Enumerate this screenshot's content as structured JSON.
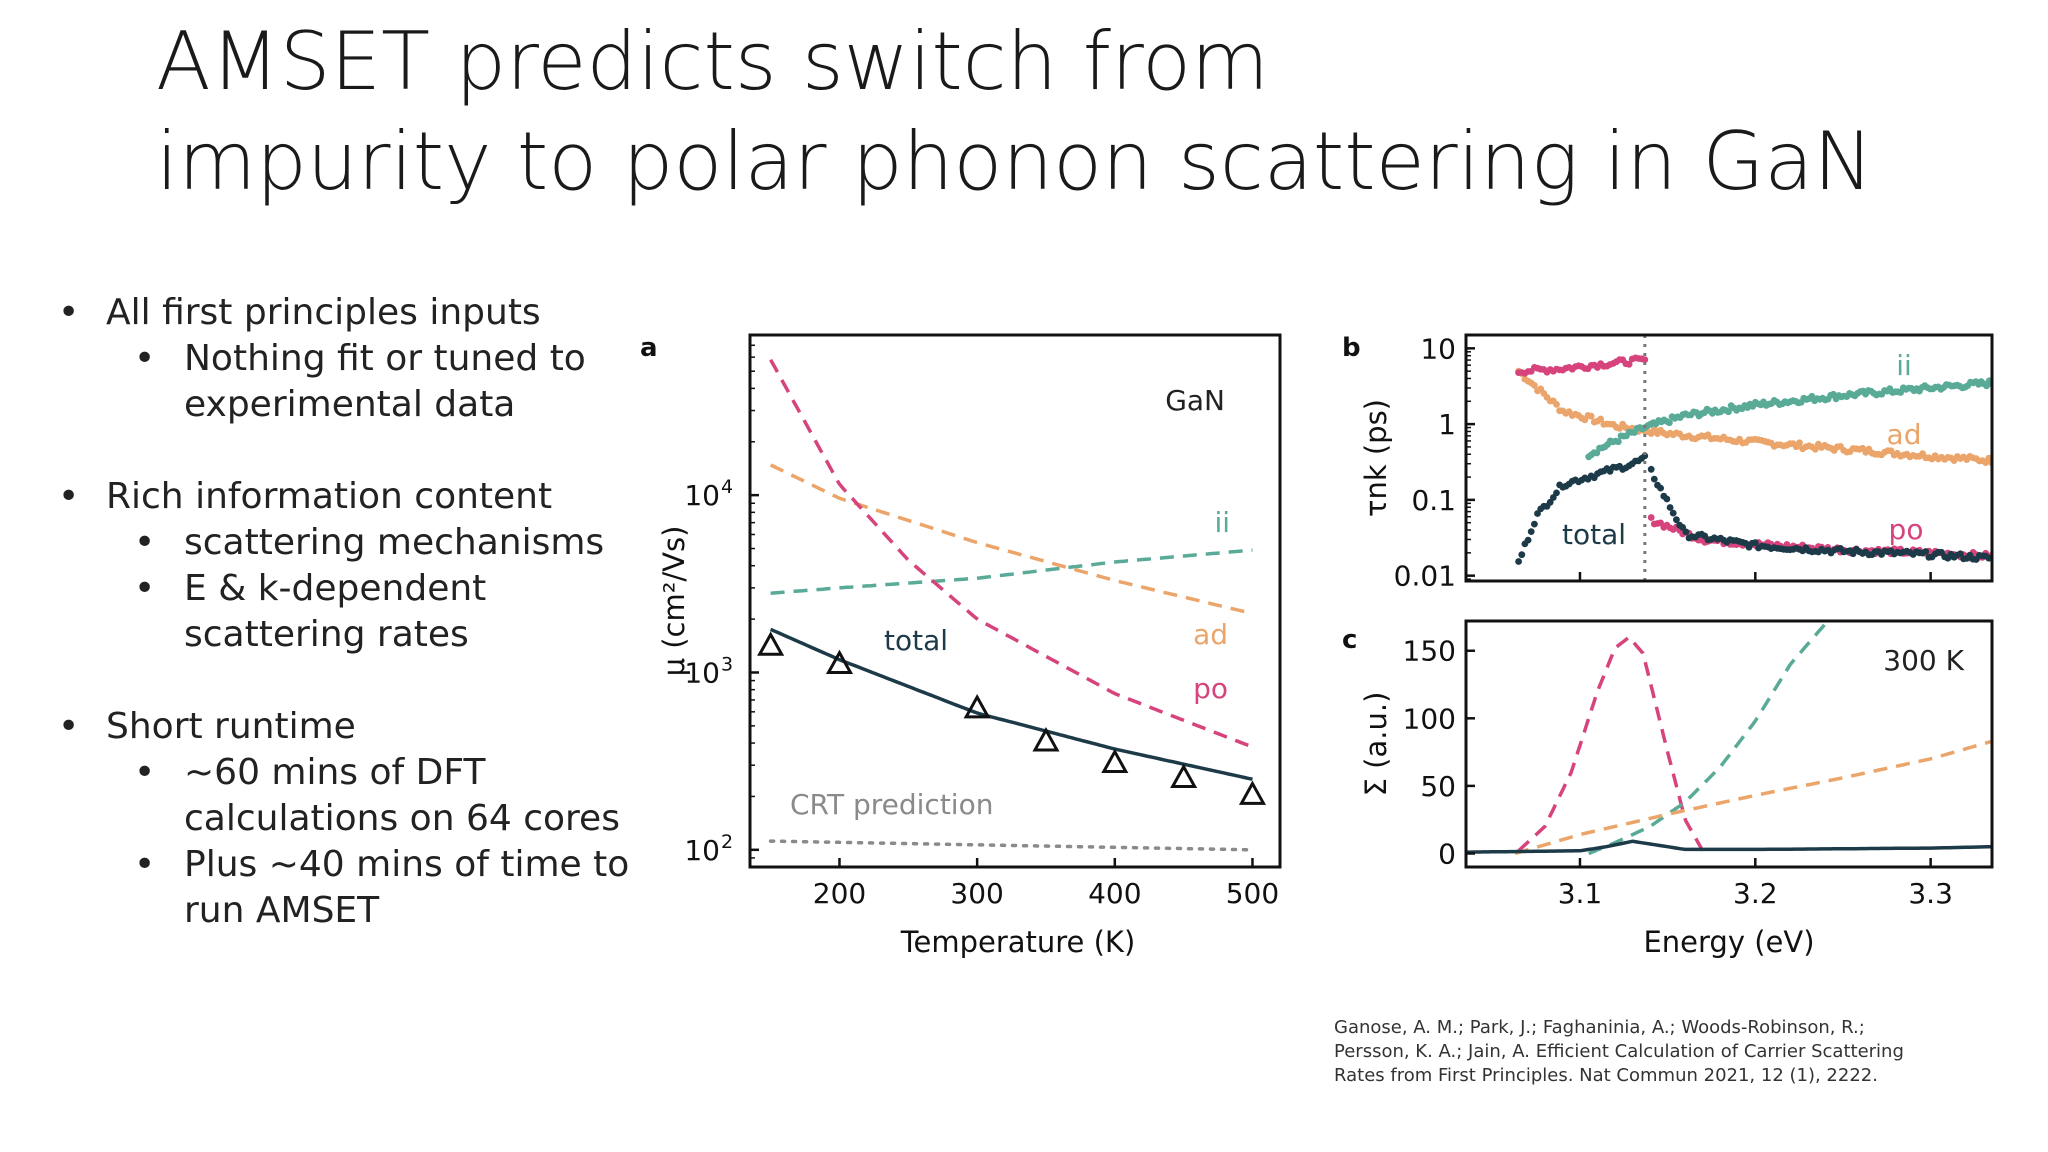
{
  "slide": {
    "title_line1": "AMSET predicts switch from",
    "title_line2": "impurity to polar phonon scattering in GaN",
    "bullets": [
      {
        "text": "All first principles inputs",
        "sub": [
          "Nothing fit or tuned to experimental data"
        ]
      },
      {
        "text": "Rich information content",
        "sub": [
          "scattering mechanisms",
          "E & k-dependent scattering rates"
        ]
      },
      {
        "text": "Short runtime",
        "sub": [
          "~60 mins of DFT calculations on 64 cores",
          "Plus ~40 mins of time to run AMSET"
        ]
      }
    ],
    "citation": "Ganose, A. M.; Park, J.; Faghaninia, A.; Woods-Robinson, R.; Persson, K. A.; Jain, A. Efficient Calculation of Carrier Scattering Rates from First Principles. Nat Commun 2021, 12 (1), 2222."
  },
  "colors": {
    "ii": "#5aaa98",
    "ad": "#eba56a",
    "po": "#d6437d",
    "total": "#1d3a48",
    "crt": "#8a8a8a"
  },
  "chart_data": [
    {
      "panel": "a",
      "type": "line",
      "annotation": "GaN",
      "xlabel": "Temperature (K)",
      "ylabel": "μ (cm²/Vs)",
      "yscale": "log",
      "xlim": [
        135,
        520
      ],
      "ylim": [
        80,
        80000
      ],
      "xticks": [
        200,
        300,
        400,
        500
      ],
      "yticks": [
        {
          "value": 100,
          "label": "10",
          "exp": "2"
        },
        {
          "value": 1000,
          "label": "10",
          "exp": "3"
        },
        {
          "value": 10000,
          "label": "10",
          "exp": "4"
        }
      ],
      "series": [
        {
          "name": "ii",
          "style": "dashed",
          "x": [
            150,
            200,
            300,
            400,
            500
          ],
          "y": [
            2800,
            3000,
            3400,
            4200,
            4900
          ]
        },
        {
          "name": "ad",
          "style": "dashed",
          "x": [
            150,
            200,
            300,
            400,
            500
          ],
          "y": [
            14800,
            9600,
            5400,
            3300,
            2150
          ]
        },
        {
          "name": "po",
          "style": "dashed",
          "x": [
            150,
            200,
            250,
            300,
            400,
            500
          ],
          "y": [
            58000,
            11500,
            4300,
            2000,
            760,
            380
          ]
        },
        {
          "name": "total",
          "style": "solid",
          "x": [
            150,
            200,
            300,
            400,
            500
          ],
          "y": [
            1750,
            1180,
            590,
            370,
            250
          ]
        },
        {
          "name": "CRT prediction",
          "style": "dotted",
          "x": [
            150,
            500
          ],
          "y": [
            112,
            100
          ]
        }
      ],
      "experiment": {
        "marker": "triangle",
        "x": [
          150,
          200,
          300,
          350,
          400,
          450,
          500
        ],
        "y": [
          1420,
          1120,
          630,
          410,
          310,
          255,
          205
        ]
      }
    },
    {
      "panel": "b",
      "type": "scatter",
      "ylabel": "τnk (ps)",
      "yscale": "log",
      "xlim": [
        3.035,
        3.335
      ],
      "ylim": [
        0.0085,
        15
      ],
      "yticks": [
        {
          "value": 10,
          "label": "10"
        },
        {
          "value": 1,
          "label": "1"
        },
        {
          "value": 0.1,
          "label": "0.1"
        },
        {
          "value": 0.01,
          "label": "0.01"
        }
      ],
      "vline_energy": 3.137,
      "series": [
        {
          "name": "ii",
          "x": [
            3.105,
            3.12,
            3.137,
            3.16,
            3.2,
            3.25,
            3.3,
            3.335
          ],
          "y": [
            0.4,
            0.6,
            0.9,
            1.3,
            1.8,
            2.4,
            3.0,
            3.5
          ]
        },
        {
          "name": "ad",
          "x": [
            3.065,
            3.09,
            3.12,
            3.15,
            3.2,
            3.25,
            3.3,
            3.335
          ],
          "y": [
            5,
            1.5,
            0.95,
            0.75,
            0.58,
            0.47,
            0.38,
            0.33
          ]
        },
        {
          "name": "po",
          "x": [
            3.065,
            3.09,
            3.11,
            3.13,
            3.137,
            3.14,
            3.17,
            3.2,
            3.25,
            3.3,
            3.335
          ],
          "y": [
            5,
            5.4,
            6.1,
            6.8,
            7,
            0.055,
            0.03,
            0.026,
            0.022,
            0.02,
            0.018
          ]
        },
        {
          "name": "total",
          "x": [
            3.065,
            3.075,
            3.09,
            3.11,
            3.13,
            3.137,
            3.14,
            3.16,
            3.2,
            3.25,
            3.3,
            3.335
          ],
          "y": [
            0.015,
            0.06,
            0.16,
            0.22,
            0.3,
            0.35,
            0.25,
            0.035,
            0.025,
            0.021,
            0.019,
            0.017
          ]
        }
      ]
    },
    {
      "panel": "c",
      "type": "line",
      "annotation": "300 K",
      "xlabel": "Energy (eV)",
      "ylabel": "Σ (a.u.)",
      "xlim": [
        3.035,
        3.335
      ],
      "ylim": [
        -10,
        172
      ],
      "xticks": [
        3.1,
        3.2,
        3.3
      ],
      "yticks": [
        0,
        50,
        100,
        150
      ],
      "series": [
        {
          "name": "po",
          "style": "dashed",
          "x": [
            3.065,
            3.08,
            3.095,
            3.11,
            3.12,
            3.128,
            3.136,
            3.15,
            3.16,
            3.17
          ],
          "y": [
            2,
            20,
            60,
            120,
            152,
            160,
            148,
            75,
            25,
            2
          ]
        },
        {
          "name": "ii",
          "style": "dashed",
          "x": [
            3.105,
            3.12,
            3.14,
            3.16,
            3.18,
            3.2,
            3.22,
            3.24
          ],
          "y": [
            0,
            8,
            20,
            38,
            64,
            98,
            140,
            170
          ]
        },
        {
          "name": "ad",
          "style": "dashed",
          "x": [
            3.063,
            3.1,
            3.15,
            3.2,
            3.25,
            3.3,
            3.335
          ],
          "y": [
            0,
            14,
            29,
            43,
            56,
            70,
            83
          ]
        },
        {
          "name": "total",
          "style": "solid",
          "x": [
            3.035,
            3.1,
            3.115,
            3.13,
            3.145,
            3.16,
            3.2,
            3.3,
            3.335
          ],
          "y": [
            1,
            2,
            5,
            9,
            6,
            3,
            3,
            4,
            5
          ]
        }
      ]
    }
  ],
  "labels": {
    "a": {
      "panel": "a",
      "ii": "ii",
      "ad": "ad",
      "po": "po",
      "total": "total",
      "crt": "CRT prediction"
    },
    "b": {
      "panel": "b",
      "ii": "ii",
      "ad": "ad",
      "po": "po",
      "total": "total"
    },
    "c": {
      "panel": "c"
    }
  }
}
